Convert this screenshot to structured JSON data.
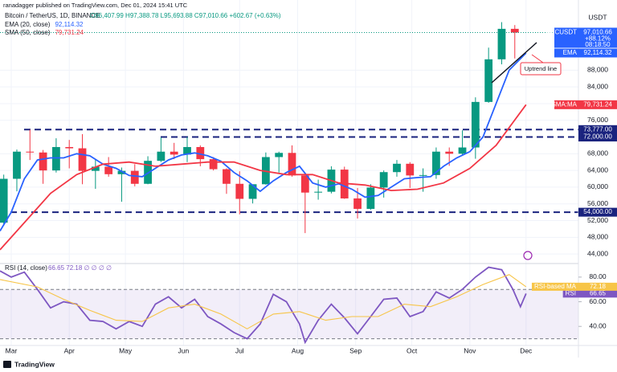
{
  "publisher": "ranadagger published on TradingView.com, Dec 01, 2024 15:41 UTC",
  "footer": "TradingView",
  "chart_data": [
    {
      "type": "candlestick",
      "title": "Bitcoin / TetherUS, 1D, BINANCE",
      "subtitle": "O96,407.99 H97,388.78 L95,693.88 C97,010.66 +602.67 (+0.63%)",
      "currency": "USDT",
      "color_up": "#089981",
      "color_down": "#f23645",
      "x": [
        -4,
        3,
        10,
        17,
        24,
        31,
        38,
        45,
        52,
        59,
        66,
        73,
        80,
        87,
        94,
        101,
        108,
        115,
        122,
        129,
        136,
        143,
        150,
        157,
        164,
        171,
        178,
        185,
        192,
        199,
        206,
        213,
        220,
        227,
        234,
        241,
        248,
        255,
        262,
        269
      ],
      "open": [
        51500,
        62000,
        68500,
        68300,
        64000,
        69600,
        69300,
        63900,
        64900,
        63100,
        63900,
        60800,
        66300,
        68500,
        67800,
        69600,
        66700,
        64300,
        60800,
        57200,
        60700,
        67200,
        68200,
        62800,
        58700,
        58900,
        64200,
        57300,
        54800,
        59900,
        63600,
        65600,
        62800,
        62900,
        68500,
        68000,
        69500,
        80400,
        90600,
        97900
      ],
      "high": [
        63000,
        69000,
        73777,
        68900,
        71700,
        71300,
        72700,
        66800,
        67200,
        64700,
        65500,
        67400,
        71900,
        70600,
        72000,
        70000,
        67200,
        64500,
        63800,
        60500,
        68300,
        68500,
        70000,
        62800,
        61800,
        65000,
        64900,
        59800,
        60700,
        64000,
        66500,
        66000,
        64500,
        69500,
        69500,
        73600,
        81500,
        93400,
        99500,
        98800
      ],
      "low": [
        50800,
        59000,
        66500,
        60800,
        63500,
        64500,
        60700,
        59600,
        62500,
        56500,
        60200,
        60700,
        66000,
        66700,
        66000,
        65000,
        64000,
        58400,
        53500,
        56100,
        60600,
        63500,
        62500,
        49000,
        57000,
        58500,
        57200,
        52500,
        54600,
        57500,
        62500,
        59800,
        58900,
        62000,
        65100,
        67500,
        66800,
        80200,
        89400,
        90800
      ],
      "close": [
        62000,
        68500,
        68300,
        64000,
        69600,
        69300,
        63900,
        64900,
        63100,
        63900,
        60800,
        66300,
        68500,
        67800,
        69600,
        66700,
        64300,
        60800,
        57200,
        60700,
        67200,
        68200,
        62800,
        58700,
        58900,
        64200,
        57300,
        54800,
        59900,
        63600,
        65600,
        62800,
        62900,
        68500,
        68000,
        69500,
        80400,
        90600,
        97900,
        97010.66
      ],
      "xlim": [
        -6,
        303
      ],
      "xticks": [
        {
          "value": 0,
          "label": "Mar"
        },
        {
          "value": 31,
          "label": "Apr"
        },
        {
          "value": 61,
          "label": "May"
        },
        {
          "value": 92,
          "label": "Jun"
        },
        {
          "value": 122,
          "label": "Jul"
        },
        {
          "value": 153,
          "label": "Aug"
        },
        {
          "value": 184,
          "label": "Sep"
        },
        {
          "value": 214,
          "label": "Oct"
        },
        {
          "value": 245,
          "label": "Nov"
        },
        {
          "value": 275,
          "label": "Dec"
        }
      ],
      "ylim": [
        42100,
        104800
      ],
      "yticks": [
        {
          "value": 44000,
          "label": "44,000"
        },
        {
          "value": 48000,
          "label": "48,000"
        },
        {
          "value": 52000,
          "label": "52,000"
        },
        {
          "value": 56000,
          "label": "56,000"
        },
        {
          "value": 60000,
          "label": "60,000"
        },
        {
          "value": 64000,
          "label": "64,000"
        },
        {
          "value": 68000,
          "label": "68,000"
        },
        {
          "value": 76000,
          "label": "76,000"
        },
        {
          "value": 80000,
          "label": "80,000"
        },
        {
          "value": 84000,
          "label": "84,000"
        },
        {
          "value": 88000,
          "label": "88,000"
        }
      ],
      "grid": true,
      "series": [
        {
          "name": "EMA (20, close)",
          "badge": "EMA",
          "color": "#2962ff",
          "last_label": "92,114.32",
          "x": [
            -6,
            0,
            7,
            14,
            21,
            28,
            35,
            42,
            49,
            56,
            63,
            70,
            77,
            84,
            91,
            98,
            105,
            112,
            119,
            126,
            133,
            140,
            147,
            154,
            161,
            168,
            175,
            182,
            189,
            196,
            203,
            210,
            217,
            224,
            231,
            238,
            245,
            252,
            259,
            266,
            275
          ],
          "values": [
            49500,
            54000,
            62000,
            66500,
            67000,
            67000,
            68000,
            67500,
            65500,
            64500,
            62800,
            62500,
            64500,
            66500,
            67700,
            68200,
            67500,
            66200,
            63500,
            61500,
            59000,
            61500,
            63500,
            65000,
            61000,
            60000,
            60800,
            59500,
            57600,
            58000,
            60000,
            62000,
            62300,
            62500,
            65000,
            67000,
            68500,
            72000,
            80000,
            88000,
            92114.32
          ]
        },
        {
          "name": "SMA (50, close)",
          "badge": "SMA:MA",
          "color": "#f23645",
          "last_label": "79,731.24",
          "x": [
            -6,
            7,
            21,
            35,
            49,
            63,
            77,
            91,
            105,
            119,
            133,
            147,
            161,
            175,
            189,
            203,
            217,
            231,
            245,
            259,
            275
          ],
          "values": [
            45000,
            51500,
            58500,
            63000,
            65500,
            66000,
            65000,
            65500,
            66000,
            66000,
            64000,
            63000,
            63000,
            61000,
            60500,
            59200,
            59500,
            61000,
            64500,
            70000,
            79731.24
          ]
        }
      ],
      "levels": [
        {
          "value": 73777,
          "label": "73,777.00"
        },
        {
          "value": 72000,
          "label": "72,000.00"
        },
        {
          "value": 54000,
          "label": "54,000.00"
        }
      ],
      "last_price": {
        "symbol": "BTCUSDT",
        "value": 97010.66,
        "label": "97,010.66",
        "change": "+88.12%",
        "countdown": "08:18:50"
      },
      "annotation": "Uptrend line"
    },
    {
      "type": "line",
      "title": "RSI (14, close)",
      "legend_values": "66.65  72.18  ∅  ∅  ∅  ∅",
      "ylim": [
        24.5,
        89.7
      ],
      "yticks": [
        {
          "value": 40,
          "label": "40.00"
        },
        {
          "value": 60,
          "label": "60.00"
        },
        {
          "value": 80,
          "label": "80.00"
        }
      ],
      "band": [
        30,
        70
      ],
      "series": [
        {
          "name": "RSI",
          "color": "#7e57c2",
          "last_label": "66.65",
          "x": [
            -6,
            0,
            7,
            14,
            21,
            28,
            35,
            42,
            49,
            56,
            63,
            70,
            77,
            84,
            91,
            98,
            105,
            112,
            119,
            126,
            133,
            140,
            147,
            154,
            157,
            164,
            171,
            178,
            185,
            192,
            199,
            206,
            213,
            220,
            227,
            234,
            241,
            248,
            255,
            262,
            268,
            272,
            275
          ],
          "values": [
            85,
            80,
            84,
            70,
            55,
            60,
            58,
            45,
            44,
            38,
            44,
            40,
            58,
            64,
            55,
            62,
            48,
            42,
            35,
            30,
            42,
            66,
            60,
            42,
            27,
            45,
            58,
            47,
            34,
            48,
            62,
            63,
            48,
            52,
            68,
            63,
            70,
            80,
            88,
            86,
            70,
            56,
            66.65
          ]
        },
        {
          "name": "RSI-based MA",
          "color": "#f7c548",
          "last_label": "72.18",
          "x": [
            -6,
            14,
            28,
            42,
            56,
            70,
            84,
            98,
            112,
            126,
            140,
            154,
            168,
            182,
            196,
            210,
            224,
            238,
            252,
            266,
            275
          ],
          "values": [
            78,
            72,
            62,
            53,
            45,
            44,
            55,
            58,
            50,
            38,
            50,
            52,
            45,
            48,
            48,
            58,
            56,
            64,
            74,
            82,
            72.18
          ]
        }
      ]
    }
  ]
}
